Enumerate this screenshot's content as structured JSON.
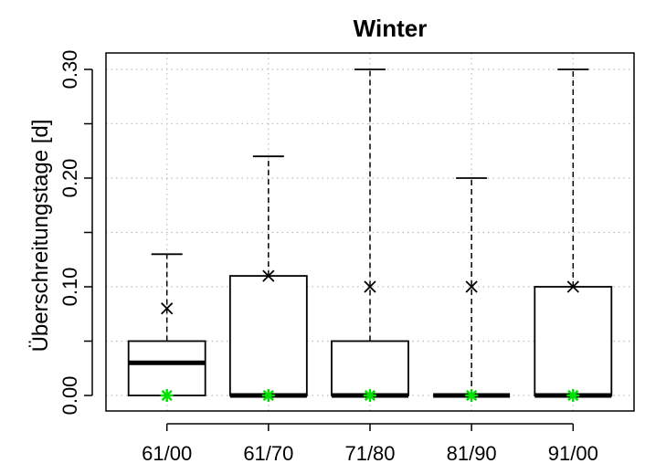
{
  "chart_data": {
    "type": "boxplot",
    "title": "Winter",
    "xlabel": "",
    "ylabel": "Überschreitungstage [d]",
    "ylim": [
      -0.02,
      0.31
    ],
    "yticks": [
      "0.00",
      "0.10",
      "0.20",
      "0.30"
    ],
    "ytick_values": [
      0,
      0.1,
      0.2,
      0.3
    ],
    "grid": true,
    "categories": [
      "61/00",
      "61/70",
      "71/80",
      "81/90",
      "91/00"
    ],
    "boxes": [
      {
        "category": "61/00",
        "min": 0,
        "q1": 0,
        "median": 0.03,
        "q3": 0.05,
        "max": 0.13,
        "mean": 0.08,
        "marker": 0
      },
      {
        "category": "61/70",
        "min": 0,
        "q1": 0,
        "median": 0,
        "q3": 0.11,
        "max": 0.22,
        "mean": 0.11,
        "marker": 0
      },
      {
        "category": "71/80",
        "min": 0,
        "q1": 0,
        "median": 0,
        "q3": 0.05,
        "max": 0.3,
        "mean": 0.1,
        "marker": 0
      },
      {
        "category": "81/90",
        "min": 0,
        "q1": 0,
        "median": 0,
        "q3": 0,
        "max": 0.2,
        "mean": 0.1,
        "marker": 0
      },
      {
        "category": "91/00",
        "min": 0,
        "q1": 0,
        "median": 0,
        "q3": 0.1,
        "max": 0.3,
        "mean": 0.1,
        "marker": 0
      }
    ],
    "colors": {
      "box": "#000000",
      "grid": "#bdbdbd",
      "marker": "#00e000"
    }
  }
}
